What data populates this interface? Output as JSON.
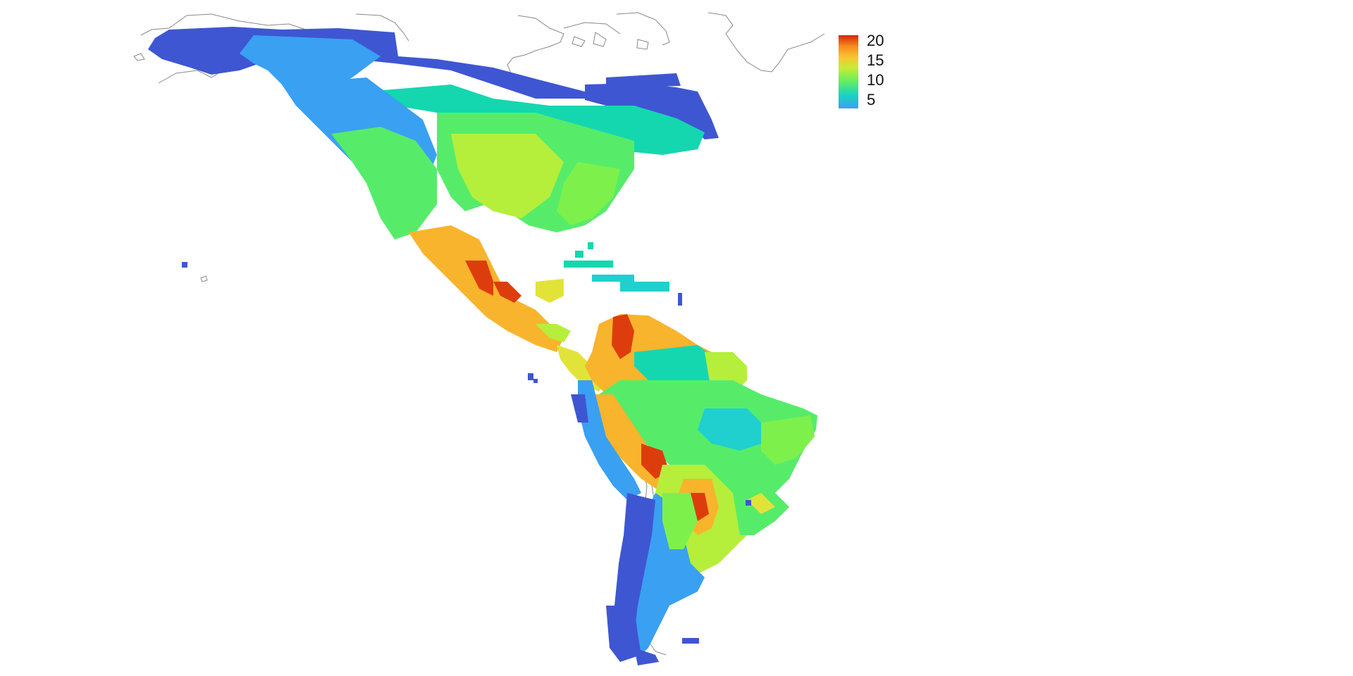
{
  "map": {
    "projection": "equirectangular",
    "background": "#ffffff",
    "coastline_color": "#888888",
    "region": "Americas"
  },
  "legend": {
    "labels": [
      "20",
      "15",
      "10",
      "5"
    ],
    "values": [
      20,
      15,
      10,
      5
    ],
    "range": [
      3,
      22
    ],
    "colors": [
      "#3f4fd0",
      "#3aa0f2",
      "#17d4c3",
      "#67ef5c",
      "#c5ec37",
      "#f8c530",
      "#f78a1f",
      "#d62606"
    ]
  }
}
